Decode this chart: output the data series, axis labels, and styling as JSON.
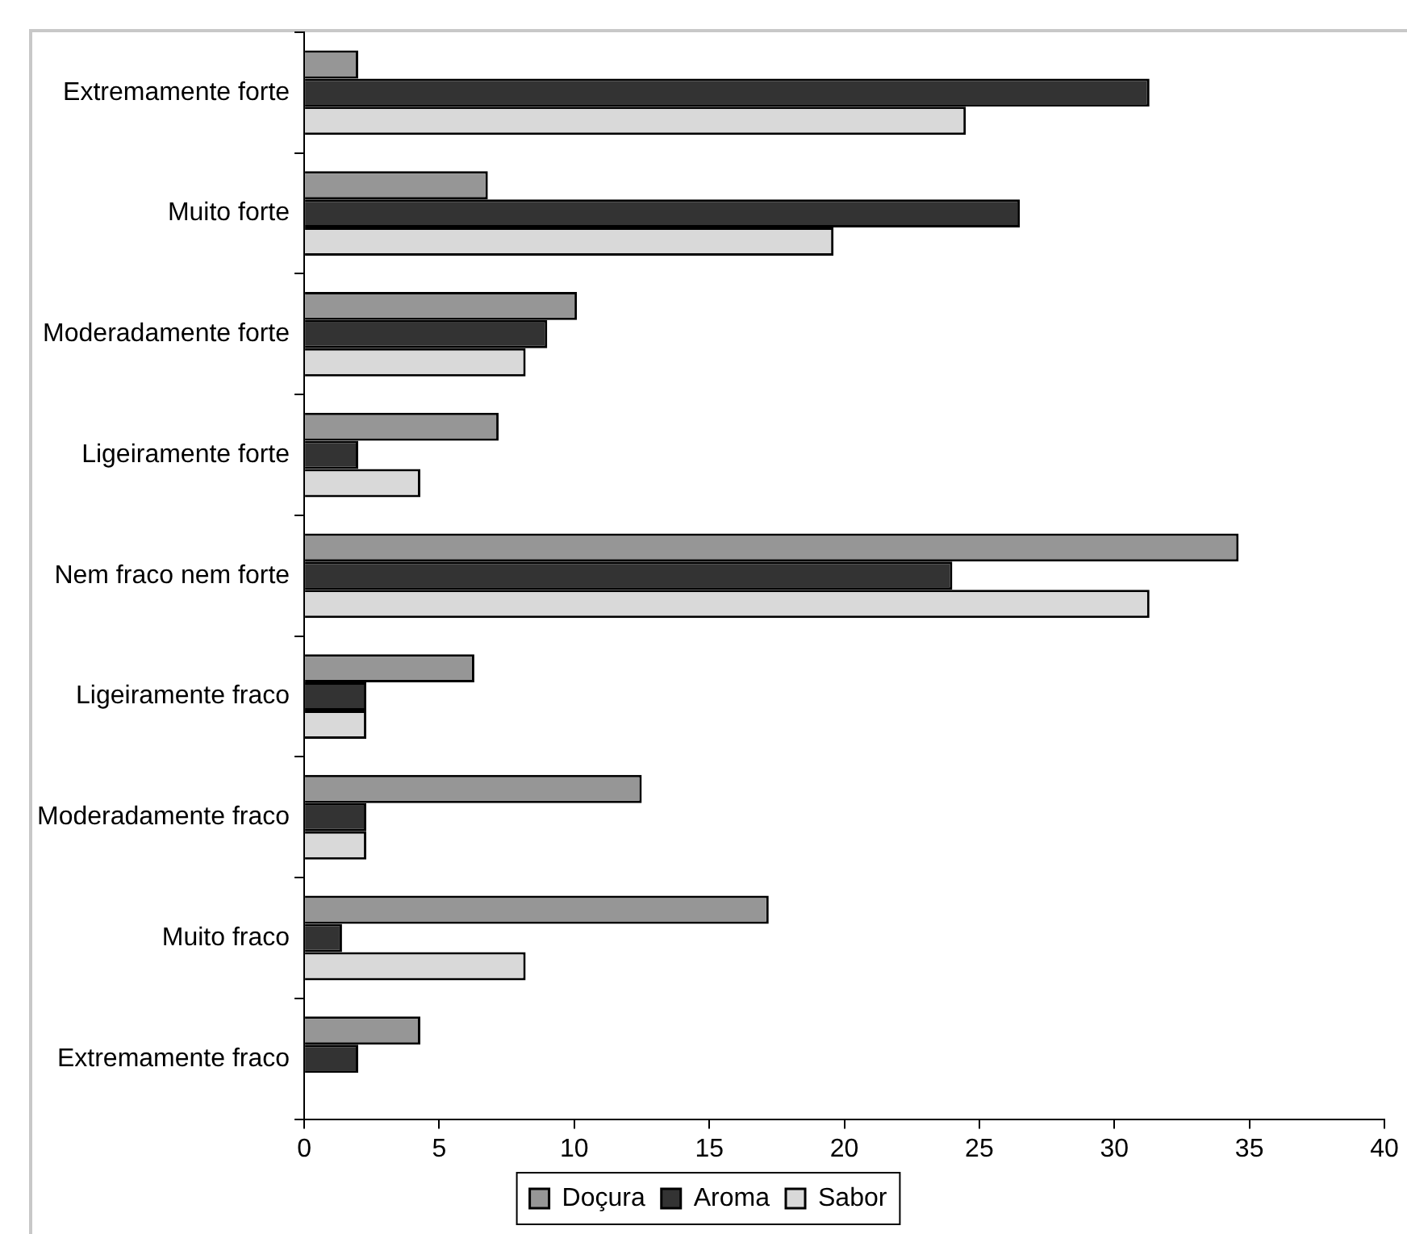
{
  "chart_data": {
    "type": "bar",
    "orientation": "horizontal",
    "categories": [
      "Extremamente forte",
      "Muito forte",
      "Moderadamente forte",
      "Ligeiramente forte",
      "Nem fraco nem forte",
      "Ligeiramente fraco",
      "Moderadamente fraco",
      "Muito fraco",
      "Extremamente fraco"
    ],
    "series": [
      {
        "name": "Doçura",
        "color": "#969696",
        "values": [
          2.0,
          6.8,
          10.1,
          7.2,
          34.6,
          6.3,
          12.5,
          17.2,
          4.3
        ]
      },
      {
        "name": "Aroma",
        "color": "#333333",
        "values": [
          31.3,
          26.5,
          9.0,
          2.0,
          24.0,
          2.3,
          2.3,
          1.4,
          2.0
        ]
      },
      {
        "name": "Sabor",
        "color": "#d9d9d9",
        "values": [
          24.5,
          19.6,
          8.2,
          4.3,
          31.3,
          2.3,
          2.3,
          8.2,
          null
        ]
      }
    ],
    "xlim": [
      0,
      40
    ],
    "xticks": [
      0,
      5,
      10,
      15,
      20,
      25,
      30,
      35,
      40
    ],
    "grid": false,
    "legend": "bottom"
  }
}
